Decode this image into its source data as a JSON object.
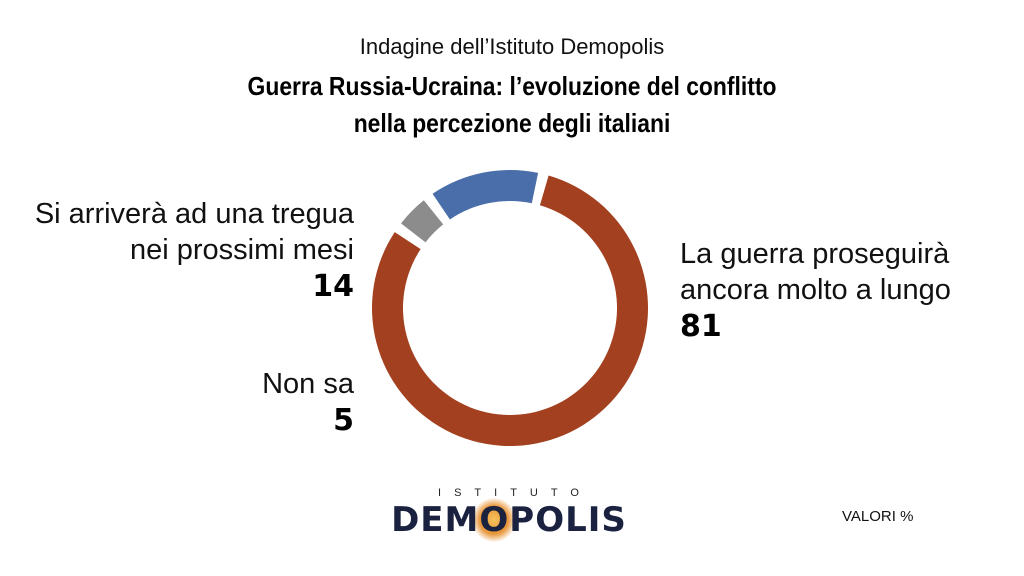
{
  "header": {
    "subtitle": "Indagine dell’Istituto Demopolis",
    "title_line1": "Guerra Russia-Ucraina: l’evoluzione del conflitto",
    "title_line2": "nella percezione degli italiani"
  },
  "chart_data": {
    "type": "pie",
    "style": "donut",
    "categories": [
      "La guerra proseguirà ancora molto a lungo",
      "Non sa",
      "Si arriverà ad una tregua nei prossimi mesi"
    ],
    "values": [
      81,
      5,
      14
    ],
    "colors": [
      "#a2401f",
      "#8c8c8c",
      "#4a6ea9"
    ],
    "labels": {
      "guerra": {
        "line1": "La guerra proseguirà",
        "line2": "ancora molto a lungo",
        "value": "81"
      },
      "nonsa": {
        "line1": "Non sa",
        "value": "5"
      },
      "tregua": {
        "line1": "Si arriverà ad una tregua",
        "line2": "nei prossimi mesi",
        "value": "14"
      }
    }
  },
  "logo": {
    "top": "ISTITUTO",
    "main_before": "DEM",
    "main_o": "O",
    "main_after": "POLIS"
  },
  "footer": {
    "units": "VALORI %"
  }
}
